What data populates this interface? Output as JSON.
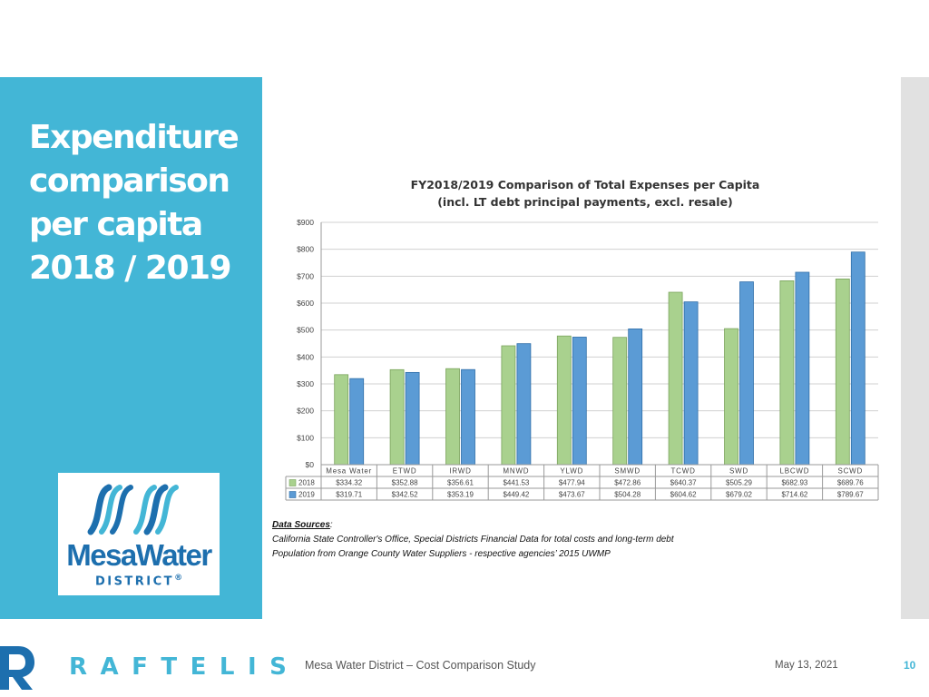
{
  "slide": {
    "title_lines": [
      "Expenditure",
      "comparison",
      "per capita",
      "2018 / 2019"
    ]
  },
  "logo": {
    "name": "MesaWater",
    "sub": "DISTRICT",
    "reg": "®"
  },
  "sources": {
    "label": "Data Sources",
    "line1": "California State Controller's Office, Special Districts Financial Data for total costs and long-term debt",
    "line2": "Population from Orange County Water Suppliers  - respective agencies’ 2015 UWMP"
  },
  "footer": {
    "brand": "RAFTELIS",
    "study": "Mesa Water District – Cost Comparison Study",
    "date": "May 13, 2021",
    "page": "10"
  },
  "colors": {
    "panel": "#43b6d6",
    "series_2018": "#a9d18e",
    "series_2019": "#5b9bd5",
    "logo_blue": "#1d6fae"
  },
  "chart_data": {
    "type": "bar",
    "title": "FY2018/2019 Comparison of Total Expenses per Capita",
    "subtitle": "(incl. LT debt principal payments, excl. resale)",
    "categories": [
      "Mesa Water",
      "ETWD",
      "IRWD",
      "MNWD",
      "YLWD",
      "SMWD",
      "TCWD",
      "SWD",
      "LBCWD",
      "SCWD"
    ],
    "series": [
      {
        "name": "2018",
        "values": [
          334.32,
          352.88,
          356.61,
          441.53,
          477.94,
          472.86,
          640.37,
          505.29,
          682.93,
          689.76
        ],
        "labels": [
          "$334.32",
          "$352.88",
          "$356.61",
          "$441.53",
          "$477.94",
          "$472.86",
          "$640.37",
          "$505.29",
          "$682.93",
          "$689.76"
        ]
      },
      {
        "name": "2019",
        "values": [
          319.71,
          342.52,
          353.19,
          449.42,
          473.67,
          504.28,
          604.62,
          679.02,
          714.62,
          789.67
        ],
        "labels": [
          "$319.71",
          "$342.52",
          "$353.19",
          "$449.42",
          "$473.67",
          "$504.28",
          "$604.62",
          "$679.02",
          "$714.62",
          "$789.67"
        ]
      }
    ],
    "yticks": [
      "$0",
      "$100",
      "$200",
      "$300",
      "$400",
      "$500",
      "$600",
      "$700",
      "$800",
      "$900"
    ],
    "ylim": [
      0,
      900
    ],
    "grid": true,
    "legend": "data table"
  }
}
